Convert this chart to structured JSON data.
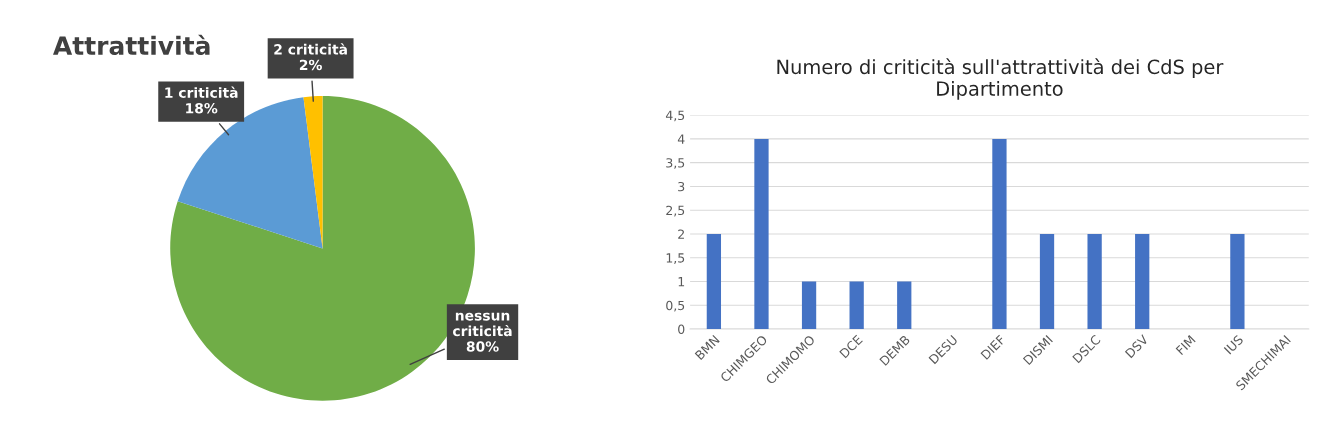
{
  "chart_data": [
    {
      "type": "pie",
      "title": "Attrattività",
      "categories": [
        "nessun\ncriticità",
        "1 criticità",
        "2 criticità"
      ],
      "values": [
        80,
        18,
        2
      ],
      "value_labels": [
        "80%",
        "18%",
        "2%"
      ],
      "colors": [
        "#70ad47",
        "#5b9bd5",
        "#ffc000"
      ]
    },
    {
      "type": "bar",
      "title": "Numero di criticità sull'attrattività dei CdS per\nDipartimento",
      "categories": [
        "BMN",
        "CHIMGEO",
        "CHIMOMO",
        "DCE",
        "DEMB",
        "DESU",
        "DIEF",
        "DISMI",
        "DSLC",
        "DSV",
        "FIM",
        "IUS",
        "SMECHIMAI"
      ],
      "values": [
        2,
        4,
        1,
        1,
        1,
        0,
        4,
        2,
        2,
        2,
        0,
        2,
        0
      ],
      "color": "#4472c4",
      "ylim": [
        0,
        4.5
      ],
      "yticks": [
        0,
        {
          "value": 0.5,
          "label": "0,5"
        },
        1,
        {
          "value": 1.5,
          "label": "1,5"
        },
        2,
        {
          "value": 2.5,
          "label": "2,5"
        },
        3,
        {
          "value": 3.5,
          "label": "3,5"
        },
        4,
        {
          "value": 4.5,
          "label": "4,5"
        }
      ],
      "grid": "y"
    }
  ]
}
